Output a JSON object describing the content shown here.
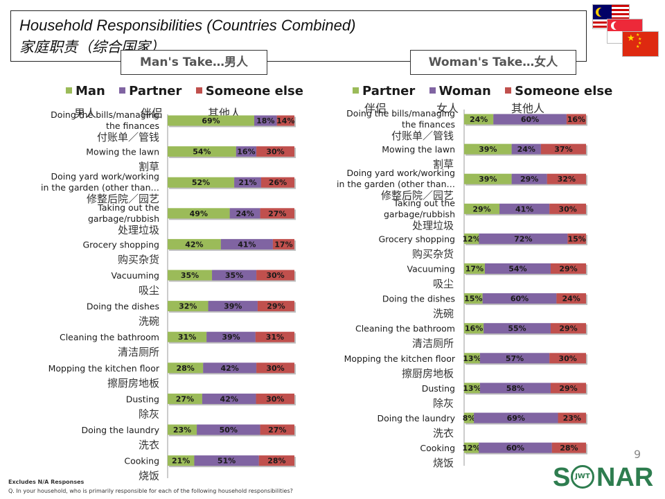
{
  "header": {
    "title_en": "Household Responsibilities (Countries Combined)",
    "title_zh": "家庭职责（综合国家）",
    "man_take": "Man's Take…男人",
    "woman_take": "Woman's Take…女人",
    "page_number": "9"
  },
  "flags": [
    "malaysia-flag",
    "singapore-flag",
    "china-flag"
  ],
  "footer": {
    "note1": "Excludes N/A Responses",
    "note2": "Q. In your household, who is primarily responsible for each of the following household responsibilities?"
  },
  "logo": {
    "text_left": "S",
    "text_right": "NAR",
    "ring_text": "JWT"
  },
  "colors": {
    "green": "#9BBB59",
    "purple": "#8064A2",
    "red": "#C0504D"
  },
  "chart_data": [
    {
      "type": "bar",
      "stacked": true,
      "orientation": "horizontal",
      "title": "Man's Take…男人",
      "legend": [
        "Man",
        "Partner",
        "Someone else"
      ],
      "legend_zh": [
        "男人",
        "伴侣",
        "其他人"
      ],
      "categories": [
        {
          "en": "Doing the bills/managing the finances",
          "zh": "付账单／管钱"
        },
        {
          "en": "Mowing the lawn",
          "zh": "割草"
        },
        {
          "en": "Doing yard work/working in the garden (other than…",
          "zh": "修整后院／园艺"
        },
        {
          "en": "Taking out the garbage/rubbish",
          "zh": "处理垃圾"
        },
        {
          "en": "Grocery shopping",
          "zh": "购买杂货"
        },
        {
          "en": "Vacuuming",
          "zh": "吸尘"
        },
        {
          "en": "Doing the dishes",
          "zh": "洗碗"
        },
        {
          "en": "Cleaning the bathroom",
          "zh": "清洁厕所"
        },
        {
          "en": "Mopping the kitchen floor",
          "zh": "擦厨房地板"
        },
        {
          "en": "Dusting",
          "zh": "除灰"
        },
        {
          "en": "Doing the laundry",
          "zh": "洗衣"
        },
        {
          "en": "Cooking",
          "zh": "烧饭"
        }
      ],
      "series": [
        {
          "name": "Man",
          "values": [
            69,
            54,
            52,
            49,
            42,
            35,
            32,
            31,
            28,
            27,
            23,
            21
          ]
        },
        {
          "name": "Partner",
          "values": [
            18,
            16,
            21,
            24,
            41,
            35,
            39,
            39,
            42,
            42,
            50,
            51
          ]
        },
        {
          "name": "Someone else",
          "values": [
            14,
            30,
            26,
            27,
            17,
            30,
            29,
            31,
            30,
            30,
            27,
            28
          ]
        }
      ],
      "xlim": [
        0,
        100
      ],
      "unit": "%"
    },
    {
      "type": "bar",
      "stacked": true,
      "orientation": "horizontal",
      "title": "Woman's Take…女人",
      "legend": [
        "Partner",
        "Woman",
        "Someone else"
      ],
      "legend_zh": [
        "伴侣",
        "女人",
        "其他人"
      ],
      "categories": [
        {
          "en": "Doing the bills/managing the finances",
          "zh": "付账单／管钱"
        },
        {
          "en": "Mowing the lawn",
          "zh": "割草"
        },
        {
          "en": "Doing yard work/working in the garden (other than…",
          "zh": "修整后院／园艺"
        },
        {
          "en": "Taking out the garbage/rubbish",
          "zh": "处理垃圾"
        },
        {
          "en": "Grocery shopping",
          "zh": "购买杂货"
        },
        {
          "en": "Vacuuming",
          "zh": "吸尘"
        },
        {
          "en": "Doing the dishes",
          "zh": "洗碗"
        },
        {
          "en": "Cleaning the bathroom",
          "zh": "清洁厕所"
        },
        {
          "en": "Mopping the kitchen floor",
          "zh": "擦厨房地板"
        },
        {
          "en": "Dusting",
          "zh": "除灰"
        },
        {
          "en": "Doing the laundry",
          "zh": "洗衣"
        },
        {
          "en": "Cooking",
          "zh": "烧饭"
        }
      ],
      "series": [
        {
          "name": "Partner",
          "values": [
            24,
            39,
            39,
            29,
            12,
            17,
            15,
            16,
            13,
            13,
            8,
            12
          ]
        },
        {
          "name": "Woman",
          "values": [
            60,
            24,
            29,
            41,
            72,
            54,
            60,
            55,
            57,
            58,
            69,
            60
          ]
        },
        {
          "name": "Someone else",
          "values": [
            16,
            37,
            32,
            30,
            15,
            29,
            24,
            29,
            30,
            29,
            23,
            28
          ]
        }
      ],
      "xlim": [
        0,
        100
      ],
      "unit": "%"
    }
  ]
}
